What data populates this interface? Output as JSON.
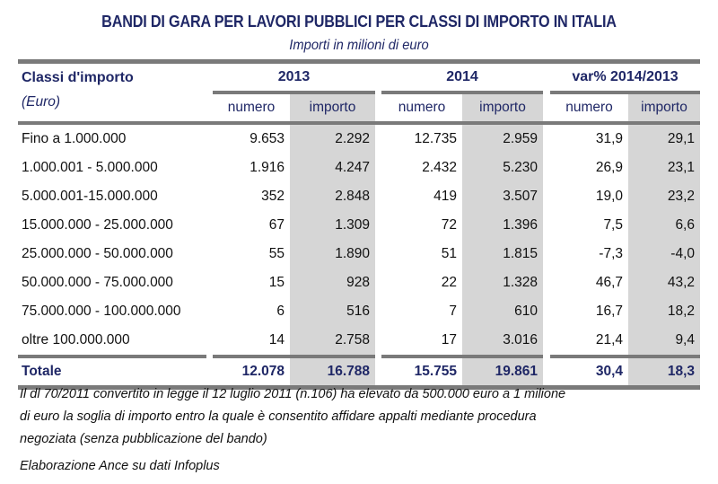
{
  "title": "BANDI DI GARA PER LAVORI PUBBLICI PER CLASSI DI IMPORTO IN ITALIA",
  "subtitle": "Importi in milioni di euro",
  "header": {
    "label1": "Classi d'importo",
    "label2": "(Euro)",
    "groups": [
      "2013",
      "2014",
      "var% 2014/2013"
    ],
    "sub": [
      "numero",
      "importo",
      "numero",
      "importo",
      "numero",
      "importo"
    ]
  },
  "rows": [
    [
      "Fino a 1.000.000",
      "9.653",
      "2.292",
      "12.735",
      "2.959",
      "31,9",
      "29,1"
    ],
    [
      "1.000.001 - 5.000.000",
      "1.916",
      "4.247",
      "2.432",
      "5.230",
      "26,9",
      "23,1"
    ],
    [
      "5.000.001-15.000.000",
      "352",
      "2.848",
      "419",
      "3.507",
      "19,0",
      "23,2"
    ],
    [
      "15.000.000 - 25.000.000",
      "67",
      "1.309",
      "72",
      "1.396",
      "7,5",
      "6,6"
    ],
    [
      "25.000.000 - 50.000.000",
      "55",
      "1.890",
      "51",
      "1.815",
      "-7,3",
      "-4,0"
    ],
    [
      " 50.000.000 - 75.000.000",
      "15",
      "928",
      "22",
      "1.328",
      "46,7",
      "43,2"
    ],
    [
      "75.000.000 - 100.000.000",
      "6",
      "516",
      "7",
      "610",
      "16,7",
      "18,2"
    ],
    [
      "oltre 100.000.000",
      "14",
      "2.758",
      "17",
      "3.016",
      "21,4",
      "9,4"
    ]
  ],
  "total": [
    "Totale",
    "12.078",
    "16.788",
    "15.755",
    "19.861",
    "30,4",
    "18,3"
  ],
  "notes": [
    "Il dl 70/2011 convertito in legge il 12 luglio 2011 (n.106) ha elevato da 500.000 euro a 1 milione",
    "di euro la soglia di importo entro la quale è consentito affidare appalti mediante procedura",
    "negoziata (senza pubblicazione del bando)",
    "Elaborazione Ance su dati Infoplus"
  ],
  "colors": {
    "title": "#1f2766",
    "shade": "#d6d6d6",
    "rule": "#7a7a7a"
  },
  "chart_data": {
    "type": "table",
    "title": "BANDI DI GARA PER LAVORI PUBBLICI PER CLASSI DI IMPORTO IN ITALIA",
    "subtitle": "Importi in milioni di euro",
    "columns": [
      "Classi d'importo (Euro)",
      "2013 numero",
      "2013 importo",
      "2014 numero",
      "2014 importo",
      "var% numero",
      "var% importo"
    ],
    "categories": [
      "Fino a 1.000.000",
      "1.000.001 - 5.000.000",
      "5.000.001-15.000.000",
      "15.000.000 - 25.000.000",
      "25.000.000 - 50.000.000",
      "50.000.000 - 75.000.000",
      "75.000.000 - 100.000.000",
      "oltre 100.000.000",
      "Totale"
    ],
    "series": [
      {
        "name": "2013 numero",
        "values": [
          9653,
          1916,
          352,
          67,
          55,
          15,
          6,
          14,
          12078
        ]
      },
      {
        "name": "2013 importo",
        "values": [
          2292,
          4247,
          2848,
          1309,
          1890,
          928,
          516,
          2758,
          16788
        ]
      },
      {
        "name": "2014 numero",
        "values": [
          12735,
          2432,
          419,
          72,
          51,
          22,
          7,
          17,
          15755
        ]
      },
      {
        "name": "2014 importo",
        "values": [
          2959,
          5230,
          3507,
          1396,
          1815,
          1328,
          610,
          3016,
          19861
        ]
      },
      {
        "name": "var% numero",
        "values": [
          31.9,
          26.9,
          19.0,
          7.5,
          -7.3,
          46.7,
          16.7,
          21.4,
          30.4
        ]
      },
      {
        "name": "var% importo",
        "values": [
          29.1,
          23.1,
          23.2,
          6.6,
          -4.0,
          43.2,
          18.2,
          9.4,
          18.3
        ]
      }
    ]
  }
}
